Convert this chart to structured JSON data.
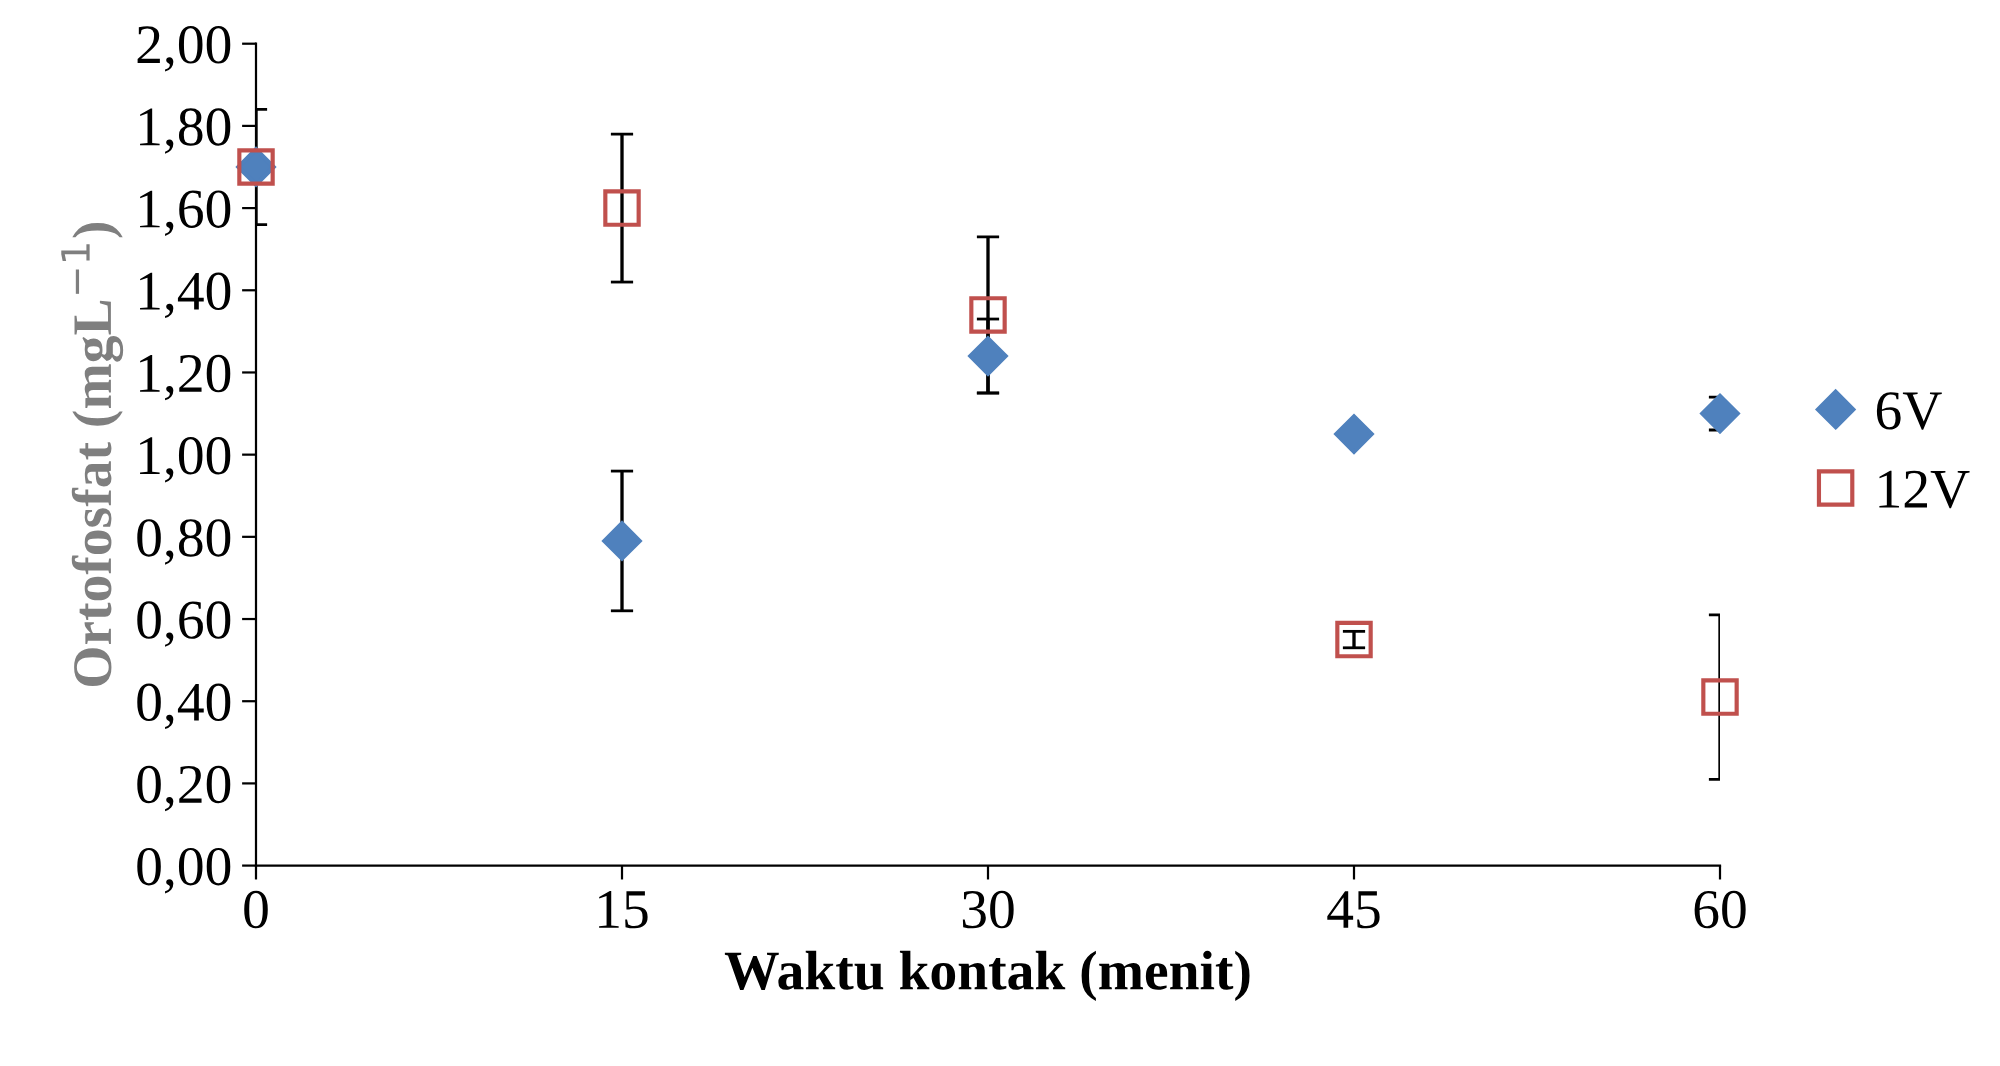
{
  "chart_data": {
    "type": "scatter",
    "xlabel": "Waktu kontak (menit)",
    "ylabel": "Ortofosfat (mgL$^{−1}$)",
    "x": [
      0,
      15,
      30,
      45,
      60
    ],
    "series": [
      {
        "name": "6V",
        "color": "#4f81bd",
        "marker": "diamond",
        "values": [
          1.7,
          0.79,
          1.24,
          1.05,
          1.1
        ],
        "errors": [
          0.14,
          0.17,
          0.09,
          null,
          0.04
        ]
      },
      {
        "name": "12V",
        "color": "#c0504d",
        "marker": "square",
        "values": [
          1.7,
          1.6,
          1.34,
          0.55,
          0.41
        ],
        "errors": [
          null,
          0.18,
          0.19,
          0.02,
          0.2
        ]
      }
    ],
    "xlim": [
      0,
      60
    ],
    "xticks": [
      0,
      15,
      30,
      45,
      60
    ],
    "ylim": [
      0,
      2
    ],
    "yticks": [
      {
        "value": 0,
        "label": "0,00"
      },
      {
        "value": 0.2,
        "label": "0,20"
      },
      {
        "value": 0.4,
        "label": "0,40"
      },
      {
        "value": 0.6,
        "label": "0,60"
      },
      {
        "value": 0.8,
        "label": "0,80"
      },
      {
        "value": 1.0,
        "label": "1,00"
      },
      {
        "value": 1.2,
        "label": "1,20"
      },
      {
        "value": 1.4,
        "label": "1,40"
      },
      {
        "value": 1.6,
        "label": "1,60"
      },
      {
        "value": 1.8,
        "label": "1,80"
      },
      {
        "value": 2.0,
        "label": "2,00"
      }
    ],
    "grid": false,
    "legend": "right"
  }
}
